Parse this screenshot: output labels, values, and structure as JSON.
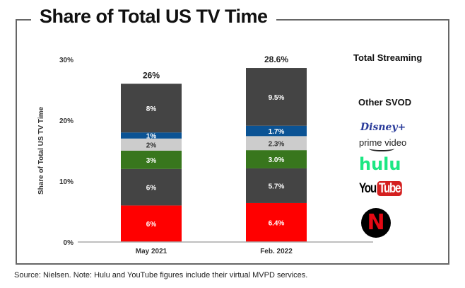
{
  "title": "Share of Total US TV Time",
  "source": "Source: Nielsen. Note: Hulu and YouTube figures include their virtual MVPD services.",
  "legend": {
    "total": "Total Streaming",
    "other": "Other SVOD",
    "disney": "Disney+",
    "prime": "prime video",
    "hulu": "hulu",
    "youtube_you": "You",
    "youtube_tube": "Tube",
    "netflix": "N"
  },
  "chart_data": {
    "type": "bar",
    "stacked": true,
    "title": "Share of Total US TV Time",
    "ylabel": "Share of Total US TV Time",
    "xlabel": "",
    "ylim": [
      0,
      30
    ],
    "yticks": [
      "0%",
      "10%",
      "20%",
      "30%"
    ],
    "categories": [
      "May 2021",
      "Feb. 2022"
    ],
    "totals": [
      "26%",
      "28.6%"
    ],
    "series": [
      {
        "name": "Netflix",
        "color": "#ff0000",
        "values": [
          6,
          6.4
        ],
        "labels": [
          "6%",
          "6.4%"
        ]
      },
      {
        "name": "YouTube",
        "color": "#444444",
        "values": [
          6,
          5.7
        ],
        "labels": [
          "6%",
          "5.7%"
        ]
      },
      {
        "name": "Hulu",
        "color": "#38761d",
        "values": [
          3,
          3.0
        ],
        "labels": [
          "3%",
          "3.0%"
        ]
      },
      {
        "name": "Prime Video",
        "color": "#cccccc",
        "values": [
          2,
          2.3
        ],
        "labels": [
          "2%",
          "2.3%"
        ]
      },
      {
        "name": "Disney+",
        "color": "#0b5394",
        "values": [
          1,
          1.7
        ],
        "labels": [
          "1%",
          "1.7%"
        ]
      },
      {
        "name": "Other SVOD",
        "color": "#444444",
        "values": [
          8,
          9.5
        ],
        "labels": [
          "8%",
          "9.5%"
        ]
      }
    ],
    "grid": false,
    "legend": "right"
  }
}
